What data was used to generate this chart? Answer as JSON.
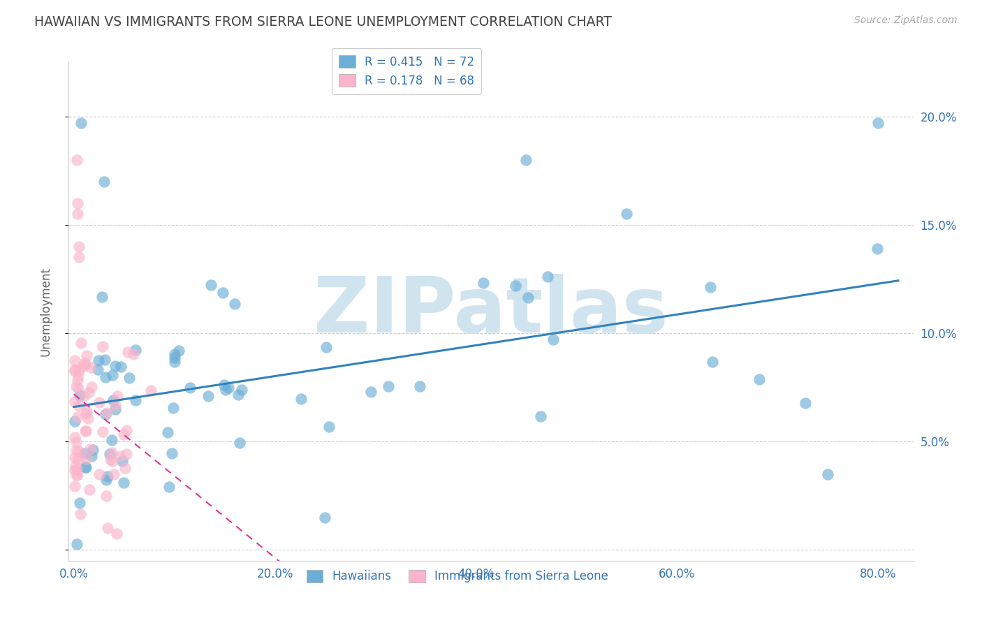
{
  "title": "HAWAIIAN VS IMMIGRANTS FROM SIERRA LEONE UNEMPLOYMENT CORRELATION CHART",
  "source": "Source: ZipAtlas.com",
  "ylabel": "Unemployment",
  "x_ticks": [
    0.0,
    0.1,
    0.2,
    0.3,
    0.4,
    0.5,
    0.6,
    0.7,
    0.8
  ],
  "x_tick_labels": [
    "0.0%",
    "",
    "20.0%",
    "",
    "40.0%",
    "",
    "60.0%",
    "",
    "80.0%"
  ],
  "y_ticks": [
    0.0,
    0.05,
    0.1,
    0.15,
    0.2
  ],
  "y_tick_labels_right": [
    "",
    "5.0%",
    "10.0%",
    "15.0%",
    "20.0%"
  ],
  "xlim": [
    -0.005,
    0.835
  ],
  "ylim": [
    -0.005,
    0.225
  ],
  "hawaiians_R": 0.415,
  "hawaiians_N": 72,
  "sierra_leone_R": 0.178,
  "sierra_leone_N": 68,
  "blue_color": "#6baed6",
  "blue_line_color": "#3182bd",
  "pink_color": "#f768a1",
  "pink_line_color": "#dd3497",
  "pink_scatter_color": "#fbb4ca",
  "watermark_color": "#d0e4f0",
  "watermark_text": "ZIPatlas",
  "background_color": "#ffffff",
  "grid_color": "#cccccc",
  "title_color": "#444444",
  "axis_label_color": "#3575b5",
  "source_color": "#aaaaaa"
}
